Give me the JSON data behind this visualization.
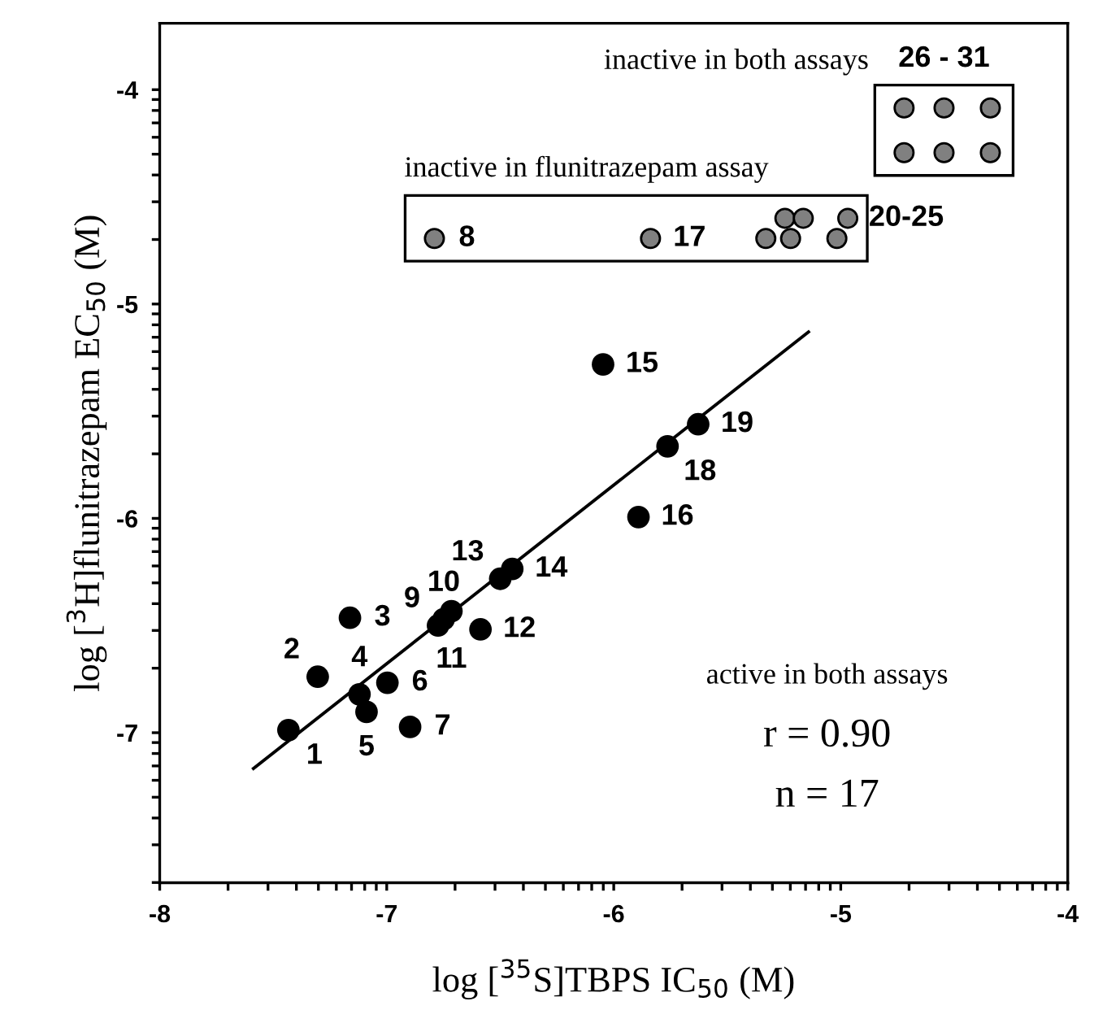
{
  "chart_data": {
    "type": "scatter",
    "xlabel": "log [$^{35}$S]TBPS IC$_{50}$ (M)",
    "ylabel": "log [$^{3}$H]flunitrazepam EC$_{50}$ (M)",
    "xlim": [
      -8,
      -4
    ],
    "ylim": [
      -7.7,
      -3.69
    ],
    "xticks": [
      -8,
      {
        "value": -7.699,
        "label": null
      },
      {
        "value": -7.523,
        "label": null
      },
      {
        "value": -7.398,
        "label": null
      },
      {
        "value": -7.301,
        "label": null
      },
      {
        "value": -7.222,
        "label": null
      },
      {
        "value": -7.155,
        "label": null
      },
      {
        "value": -7.097,
        "label": null
      },
      {
        "value": -7.046,
        "label": null
      },
      -7,
      {
        "value": -6.699,
        "label": null
      },
      {
        "value": -6.523,
        "label": null
      },
      {
        "value": -6.398,
        "label": null
      },
      {
        "value": -6.301,
        "label": null
      },
      {
        "value": -6.222,
        "label": null
      },
      {
        "value": -6.155,
        "label": null
      },
      {
        "value": -6.097,
        "label": null
      },
      {
        "value": -6.046,
        "label": null
      },
      -6,
      {
        "value": -5.699,
        "label": null
      },
      {
        "value": -5.523,
        "label": null
      },
      {
        "value": -5.398,
        "label": null
      },
      {
        "value": -5.301,
        "label": null
      },
      {
        "value": -5.222,
        "label": null
      },
      {
        "value": -5.155,
        "label": null
      },
      {
        "value": -5.097,
        "label": null
      },
      {
        "value": -5.046,
        "label": null
      },
      -5,
      {
        "value": -4.699,
        "label": null
      },
      {
        "value": -4.523,
        "label": null
      },
      {
        "value": -4.398,
        "label": null
      },
      {
        "value": -4.301,
        "label": null
      },
      {
        "value": -4.222,
        "label": null
      },
      {
        "value": -4.155,
        "label": null
      },
      {
        "value": -4.097,
        "label": null
      },
      {
        "value": -4.046,
        "label": null
      },
      -4
    ],
    "yticks": [
      {
        "value": -7.699,
        "label": null
      },
      {
        "value": -7.523,
        "label": null
      },
      {
        "value": -7.398,
        "label": null
      },
      {
        "value": -7.301,
        "label": null
      },
      {
        "value": -7.222,
        "label": null
      },
      {
        "value": -7.155,
        "label": null
      },
      {
        "value": -7.097,
        "label": null
      },
      {
        "value": -7.046,
        "label": null
      },
      -7,
      {
        "value": -6.699,
        "label": null
      },
      {
        "value": -6.523,
        "label": null
      },
      {
        "value": -6.398,
        "label": null
      },
      {
        "value": -6.301,
        "label": null
      },
      {
        "value": -6.222,
        "label": null
      },
      {
        "value": -6.155,
        "label": null
      },
      {
        "value": -6.097,
        "label": null
      },
      {
        "value": -6.046,
        "label": null
      },
      -6,
      {
        "value": -5.699,
        "label": null
      },
      {
        "value": -5.523,
        "label": null
      },
      {
        "value": -5.398,
        "label": null
      },
      {
        "value": -5.301,
        "label": null
      },
      {
        "value": -5.222,
        "label": null
      },
      {
        "value": -5.155,
        "label": null
      },
      {
        "value": -5.097,
        "label": null
      },
      {
        "value": -5.046,
        "label": null
      },
      -5,
      {
        "value": -4.699,
        "label": null
      },
      {
        "value": -4.523,
        "label": null
      },
      {
        "value": -4.398,
        "label": null
      },
      {
        "value": -4.301,
        "label": null
      },
      {
        "value": -4.222,
        "label": null
      },
      {
        "value": -4.155,
        "label": null
      },
      {
        "value": -4.097,
        "label": null
      },
      {
        "value": -4.046,
        "label": null
      },
      -4
    ],
    "marker": "circle",
    "grid": false,
    "legend": false,
    "series": [
      {
        "color": "#000000",
        "x": [
          -7.433,
          -7.304,
          -7.162,
          -7.12,
          -7.089,
          -6.997,
          -6.897,
          -6.774,
          -6.749,
          -6.715,
          -6.587,
          -6.5,
          -6.447,
          -6.047,
          -5.891,
          -5.763,
          -5.628
        ],
        "values": [
          -6.988,
          -6.739,
          -6.464,
          -6.821,
          -6.903,
          -6.767,
          -6.973,
          -6.5,
          -6.47,
          -6.433,
          -6.518,
          -6.282,
          -6.236,
          -5.282,
          -5.994,
          -5.664,
          -5.561
        ]
      },
      {
        "color": "#808080",
        "x": [
          -6.79,
          -5.838,
          -5.33,
          -5.246,
          -5.165,
          -5.221,
          -5.017,
          -4.969
        ],
        "values": [
          -4.694,
          -4.694,
          -4.694,
          -4.6,
          -4.6,
          -4.694,
          -4.694,
          -4.6
        ]
      },
      {
        "color": "#808080",
        "x": [
          -4.721,
          -4.545,
          -4.341,
          -4.721,
          -4.545,
          -4.341
        ],
        "values": [
          -4.085,
          -4.085,
          -4.085,
          -4.294,
          -4.294,
          -4.294
        ]
      },
      {
        "type": "line",
        "marker": "none",
        "color": "#000000",
        "x": [
          -7.587,
          -5.142
        ],
        "values": [
          -7.167,
          -5.13
        ]
      }
    ],
    "annotations": [
      {
        "text": "1",
        "x": -7.433,
        "y": -6.988
      },
      {
        "text": "2",
        "x": -7.304,
        "y": -6.739
      },
      {
        "text": "3",
        "x": -7.162,
        "y": -6.464
      },
      {
        "text": "4",
        "x": -7.12,
        "y": -6.821
      },
      {
        "text": "5",
        "x": -7.089,
        "y": -6.903
      },
      {
        "text": "6",
        "x": -6.997,
        "y": -6.767
      },
      {
        "text": "7",
        "x": -6.897,
        "y": -6.973
      },
      {
        "text": "8",
        "x": -6.79,
        "y": -4.694
      },
      {
        "text": "9",
        "x": -6.774,
        "y": -6.5
      },
      {
        "text": "10",
        "x": -6.749,
        "y": -6.47
      },
      {
        "text": "11",
        "x": -6.715,
        "y": -6.433
      },
      {
        "text": "12",
        "x": -6.587,
        "y": -6.518
      },
      {
        "text": "13",
        "x": -6.5,
        "y": -6.282
      },
      {
        "text": "14",
        "x": -6.447,
        "y": -6.236
      },
      {
        "text": "15",
        "x": -6.047,
        "y": -5.282
      },
      {
        "text": "16",
        "x": -5.891,
        "y": -5.994
      },
      {
        "text": "17",
        "x": -5.838,
        "y": -4.694
      },
      {
        "text": "18",
        "x": -5.763,
        "y": -5.664
      },
      {
        "text": "19",
        "x": -5.628,
        "y": -5.561
      },
      {
        "text": "20-25",
        "x": -4.969,
        "y": -4.6
      },
      {
        "text": "26 - 31",
        "x": -4.545,
        "y": -4.085
      },
      "inactive in both assays",
      "inactive in flunitrazepam assay",
      "active in both assays",
      "r = 0.90",
      "n = 17"
    ]
  }
}
